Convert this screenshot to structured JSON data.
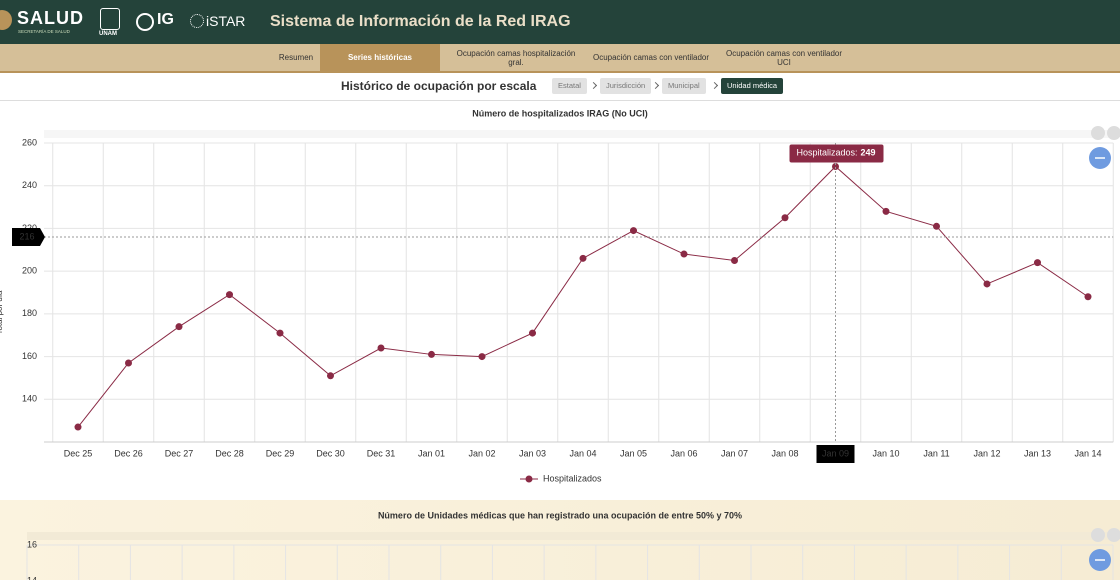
{
  "header": {
    "logos": [
      "SALUD",
      "SECRETARÍA DE SALUD",
      "UNAM",
      "IG",
      "iSTAR"
    ],
    "title": "Sistema de Información de la Red IRAG"
  },
  "nav": {
    "tabs": [
      "Resumen",
      "Series históricas",
      "Ocupación camas hospitalización gral.",
      "Ocupación camas con ventilador",
      "Ocupación camas con ventilador UCI"
    ],
    "active": 1
  },
  "subheader": {
    "title": "Histórico de ocupación por escala",
    "breadcrumb": [
      "Estatal",
      "Jurisdicción",
      "Municipal",
      "Unidad médica"
    ],
    "active": 3
  },
  "chart_data": [
    {
      "type": "line",
      "title": "Número de hospitalizados IRAG (No UCI)",
      "y_label": "Total por día",
      "categories": [
        "Dec 25",
        "Dec 26",
        "Dec 27",
        "Dec 28",
        "Dec 29",
        "Dec 30",
        "Dec 31",
        "Jan 01",
        "Jan 02",
        "Jan 03",
        "Jan 04",
        "Jan 05",
        "Jan 06",
        "Jan 07",
        "Jan 08",
        "Jan 09",
        "Jan 10",
        "Jan 11",
        "Jan 12",
        "Jan 13",
        "Jan 14"
      ],
      "series": [
        {
          "name": "Hospitalizados",
          "color": "#8a2a45",
          "values": [
            127,
            157,
            174,
            189,
            171,
            151,
            164,
            161,
            160,
            171,
            206,
            219,
            208,
            205,
            225,
            249,
            228,
            221,
            194,
            204,
            188
          ]
        }
      ],
      "ylim": [
        120,
        260
      ],
      "yticks": [
        140,
        160,
        180,
        200,
        220,
        240,
        260
      ],
      "grid": true,
      "legend": "bottom",
      "crosshair": {
        "y": 216,
        "category": 15
      },
      "tooltip": {
        "label": "Hospitalizados:",
        "point": 15
      }
    },
    {
      "type": "line",
      "title": "Número de Unidades médicas que han registrado una ocupación de entre 50% y 70%",
      "ylim": [
        14,
        16
      ],
      "yticks": [
        14,
        16
      ],
      "grid": true
    }
  ]
}
